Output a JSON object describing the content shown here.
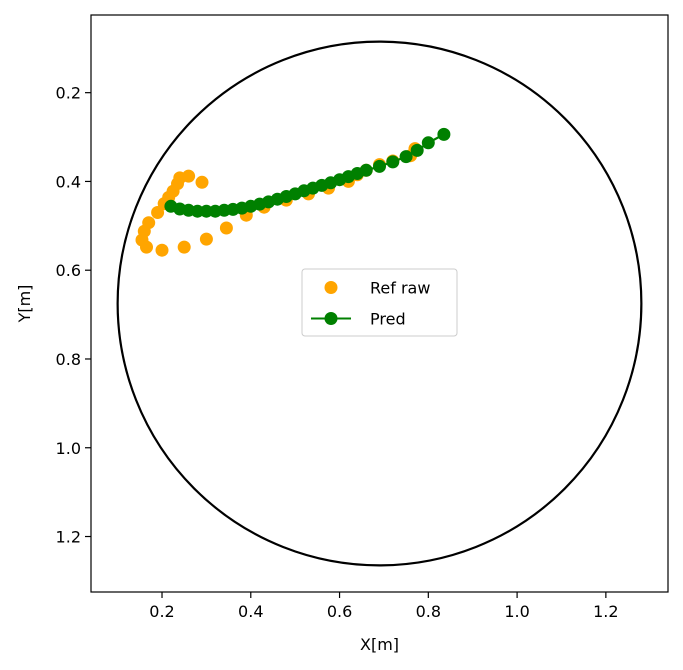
{
  "chart_data": {
    "type": "scatter",
    "title": "",
    "xlabel": "X[m]",
    "ylabel": "Y[m]",
    "xlim": [
      0.04,
      1.34
    ],
    "ylim": [
      1.325,
      0.025
    ],
    "y_inverted": true,
    "grid": false,
    "legend_position": "center",
    "xticks": [
      "0.2",
      "0.4",
      "0.6",
      "0.8",
      "1.0",
      "1.2"
    ],
    "yticks": [
      "0.2",
      "0.4",
      "0.6",
      "0.8",
      "1.0",
      "1.2"
    ],
    "circle": {
      "center": [
        0.69,
        0.675
      ],
      "radius": 0.59,
      "color": "#000000"
    },
    "series": [
      {
        "name": "Ref raw",
        "style": "markers",
        "color": "#ffa500",
        "points": [
          [
            0.2,
            0.555
          ],
          [
            0.25,
            0.548
          ],
          [
            0.3,
            0.53
          ],
          [
            0.345,
            0.505
          ],
          [
            0.39,
            0.476
          ],
          [
            0.43,
            0.458
          ],
          [
            0.48,
            0.442
          ],
          [
            0.53,
            0.428
          ],
          [
            0.575,
            0.415
          ],
          [
            0.62,
            0.4
          ],
          [
            0.64,
            0.385
          ],
          [
            0.66,
            0.375
          ],
          [
            0.69,
            0.362
          ],
          [
            0.72,
            0.354
          ],
          [
            0.76,
            0.342
          ],
          [
            0.77,
            0.326
          ],
          [
            0.165,
            0.548
          ],
          [
            0.155,
            0.532
          ],
          [
            0.16,
            0.512
          ],
          [
            0.17,
            0.493
          ],
          [
            0.19,
            0.47
          ],
          [
            0.205,
            0.45
          ],
          [
            0.215,
            0.436
          ],
          [
            0.225,
            0.422
          ],
          [
            0.235,
            0.405
          ],
          [
            0.24,
            0.392
          ],
          [
            0.26,
            0.388
          ],
          [
            0.29,
            0.402
          ]
        ]
      },
      {
        "name": "Pred",
        "style": "line+markers",
        "color": "#008000",
        "points": [
          [
            0.22,
            0.456
          ],
          [
            0.24,
            0.462
          ],
          [
            0.26,
            0.465
          ],
          [
            0.28,
            0.467
          ],
          [
            0.3,
            0.467
          ],
          [
            0.32,
            0.467
          ],
          [
            0.34,
            0.465
          ],
          [
            0.36,
            0.463
          ],
          [
            0.38,
            0.46
          ],
          [
            0.4,
            0.456
          ],
          [
            0.42,
            0.451
          ],
          [
            0.44,
            0.446
          ],
          [
            0.46,
            0.44
          ],
          [
            0.48,
            0.434
          ],
          [
            0.5,
            0.428
          ],
          [
            0.52,
            0.421
          ],
          [
            0.54,
            0.415
          ],
          [
            0.56,
            0.409
          ],
          [
            0.58,
            0.403
          ],
          [
            0.6,
            0.396
          ],
          [
            0.62,
            0.389
          ],
          [
            0.64,
            0.382
          ],
          [
            0.66,
            0.375
          ],
          [
            0.69,
            0.366
          ],
          [
            0.72,
            0.356
          ],
          [
            0.75,
            0.344
          ],
          [
            0.775,
            0.33
          ],
          [
            0.8,
            0.313
          ],
          [
            0.835,
            0.294
          ]
        ]
      }
    ]
  }
}
